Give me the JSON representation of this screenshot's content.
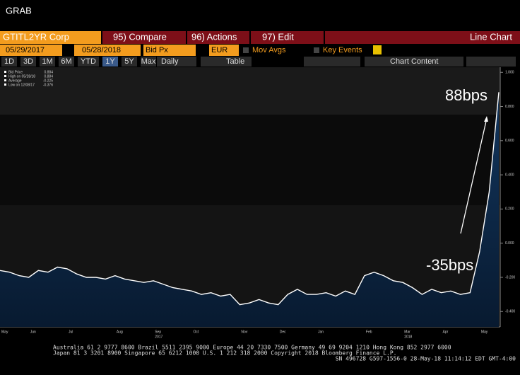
{
  "ui": {
    "app_title": "GRAB",
    "ticker": "GTITL2YR Corp",
    "compare": "95) Compare",
    "actions": "96) Actions",
    "edit": "97) Edit",
    "view": "Line Chart",
    "start_date": "05/29/2017",
    "end_date": "05/28/2018",
    "field": "Bid Px",
    "currency": "EUR",
    "mov_avgs": "Mov Avgs",
    "key_events": "Key Events",
    "periods": [
      "1D",
      "3D",
      "1M",
      "6M",
      "YTD",
      "1Y",
      "5Y",
      "Max"
    ],
    "frequency": "Daily",
    "table": "Table",
    "chart_content": "Chart Content",
    "footer": [
      "Australia 61 2 9777 8600 Brazil 5511 2395 9000 Europe 44 20 7330 7500 Germany 49 69 9204 1210 Hong Kong 852 2977 6000",
      "Japan 81 3 3201 8900 Singapore 65 6212 1000 U.S. 1 212 318 2000 Copyright 2018 Bloomberg Finance L.P.",
      "SN 496728 G597-1556-0 28-May-18 11:14:12 EDT GMT-4:00"
    ]
  },
  "chart_data": {
    "type": "area",
    "categories": [
      "May",
      null,
      null,
      "Jun",
      null,
      null,
      null,
      "Jul",
      null,
      null,
      null,
      null,
      "Aug",
      null,
      null,
      null,
      "Sep",
      null,
      null,
      null,
      "Oct",
      null,
      null,
      null,
      null,
      "Nov",
      null,
      null,
      null,
      "Dec",
      null,
      null,
      null,
      "Jan",
      null,
      null,
      null,
      null,
      "Feb",
      null,
      null,
      null,
      "Mar",
      null,
      null,
      null,
      "Apr",
      null,
      null,
      null,
      "May",
      null,
      null
    ],
    "year_labels": [
      {
        "index": 16,
        "label": "2017"
      },
      {
        "index": 42,
        "label": "2018"
      }
    ],
    "series": [
      {
        "name": "Bid Price",
        "color": "#ffffff",
        "fill": "#0d2b4d",
        "values": [
          -0.16,
          -0.17,
          -0.19,
          -0.2,
          -0.16,
          -0.17,
          -0.14,
          -0.15,
          -0.18,
          -0.2,
          -0.2,
          -0.21,
          -0.19,
          -0.21,
          -0.22,
          -0.23,
          -0.22,
          -0.24,
          -0.26,
          -0.27,
          -0.28,
          -0.3,
          -0.29,
          -0.31,
          -0.3,
          -0.36,
          -0.35,
          -0.33,
          -0.35,
          -0.36,
          -0.3,
          -0.27,
          -0.3,
          -0.3,
          -0.29,
          -0.31,
          -0.28,
          -0.3,
          -0.19,
          -0.17,
          -0.19,
          -0.22,
          -0.23,
          -0.26,
          -0.3,
          -0.27,
          -0.29,
          -0.28,
          -0.3,
          -0.29,
          -0.05,
          0.3,
          0.884
        ]
      }
    ],
    "legend": [
      {
        "label": "Bid Price",
        "value": 0.884
      },
      {
        "label": "High on 05/28/18",
        "value": 0.884
      },
      {
        "label": "Average",
        "value": -0.225
      },
      {
        "label": "Low on 12/08/17",
        "value": -0.376
      }
    ],
    "annotations": [
      "88bps",
      "-35bps"
    ],
    "ylim": [
      -0.49,
      1.03
    ],
    "yticks": [
      {
        "value": -0.4,
        "label": "-0.400"
      },
      {
        "value": -0.2,
        "label": "-0.200"
      },
      {
        "value": 0,
        "label": "0.000"
      },
      {
        "value": 0.2,
        "label": "0.200"
      },
      {
        "value": 0.4,
        "label": "0.400"
      },
      {
        "value": 0.6,
        "label": "0.600"
      },
      {
        "value": 0.8,
        "label": "0.800"
      },
      {
        "value": 1,
        "label": "1.000"
      }
    ]
  }
}
